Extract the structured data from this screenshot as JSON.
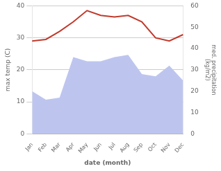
{
  "chart_data": {
    "type": "line",
    "categories": [
      "Jan",
      "Feb",
      "Mar",
      "Apr",
      "May",
      "Jun",
      "Jul",
      "Aug",
      "Sep",
      "Oct",
      "Nov",
      "Dec"
    ],
    "series": [
      {
        "type": "area",
        "color": "#bdc5ef",
        "axis": "y2",
        "values": [
          20,
          16,
          17,
          36,
          34,
          34,
          36,
          37,
          28,
          27,
          32,
          25
        ]
      },
      {
        "type": "line",
        "color": "#c0392b",
        "values": [
          29,
          29.5,
          32,
          35,
          38.5,
          37,
          36.5,
          37,
          35,
          30,
          29,
          31
        ]
      }
    ],
    "xlabel": "date (month)",
    "ylabel": "max temp (C)",
    "y2label": "med. precipitation\n(kg/m2)",
    "ylim": [
      0,
      40
    ],
    "yticks": [
      0,
      10,
      20,
      30,
      40
    ],
    "y2lim": [
      0,
      60
    ],
    "y2ticks": [
      0,
      10,
      20,
      30,
      40,
      50,
      60
    ],
    "grid": true
  }
}
